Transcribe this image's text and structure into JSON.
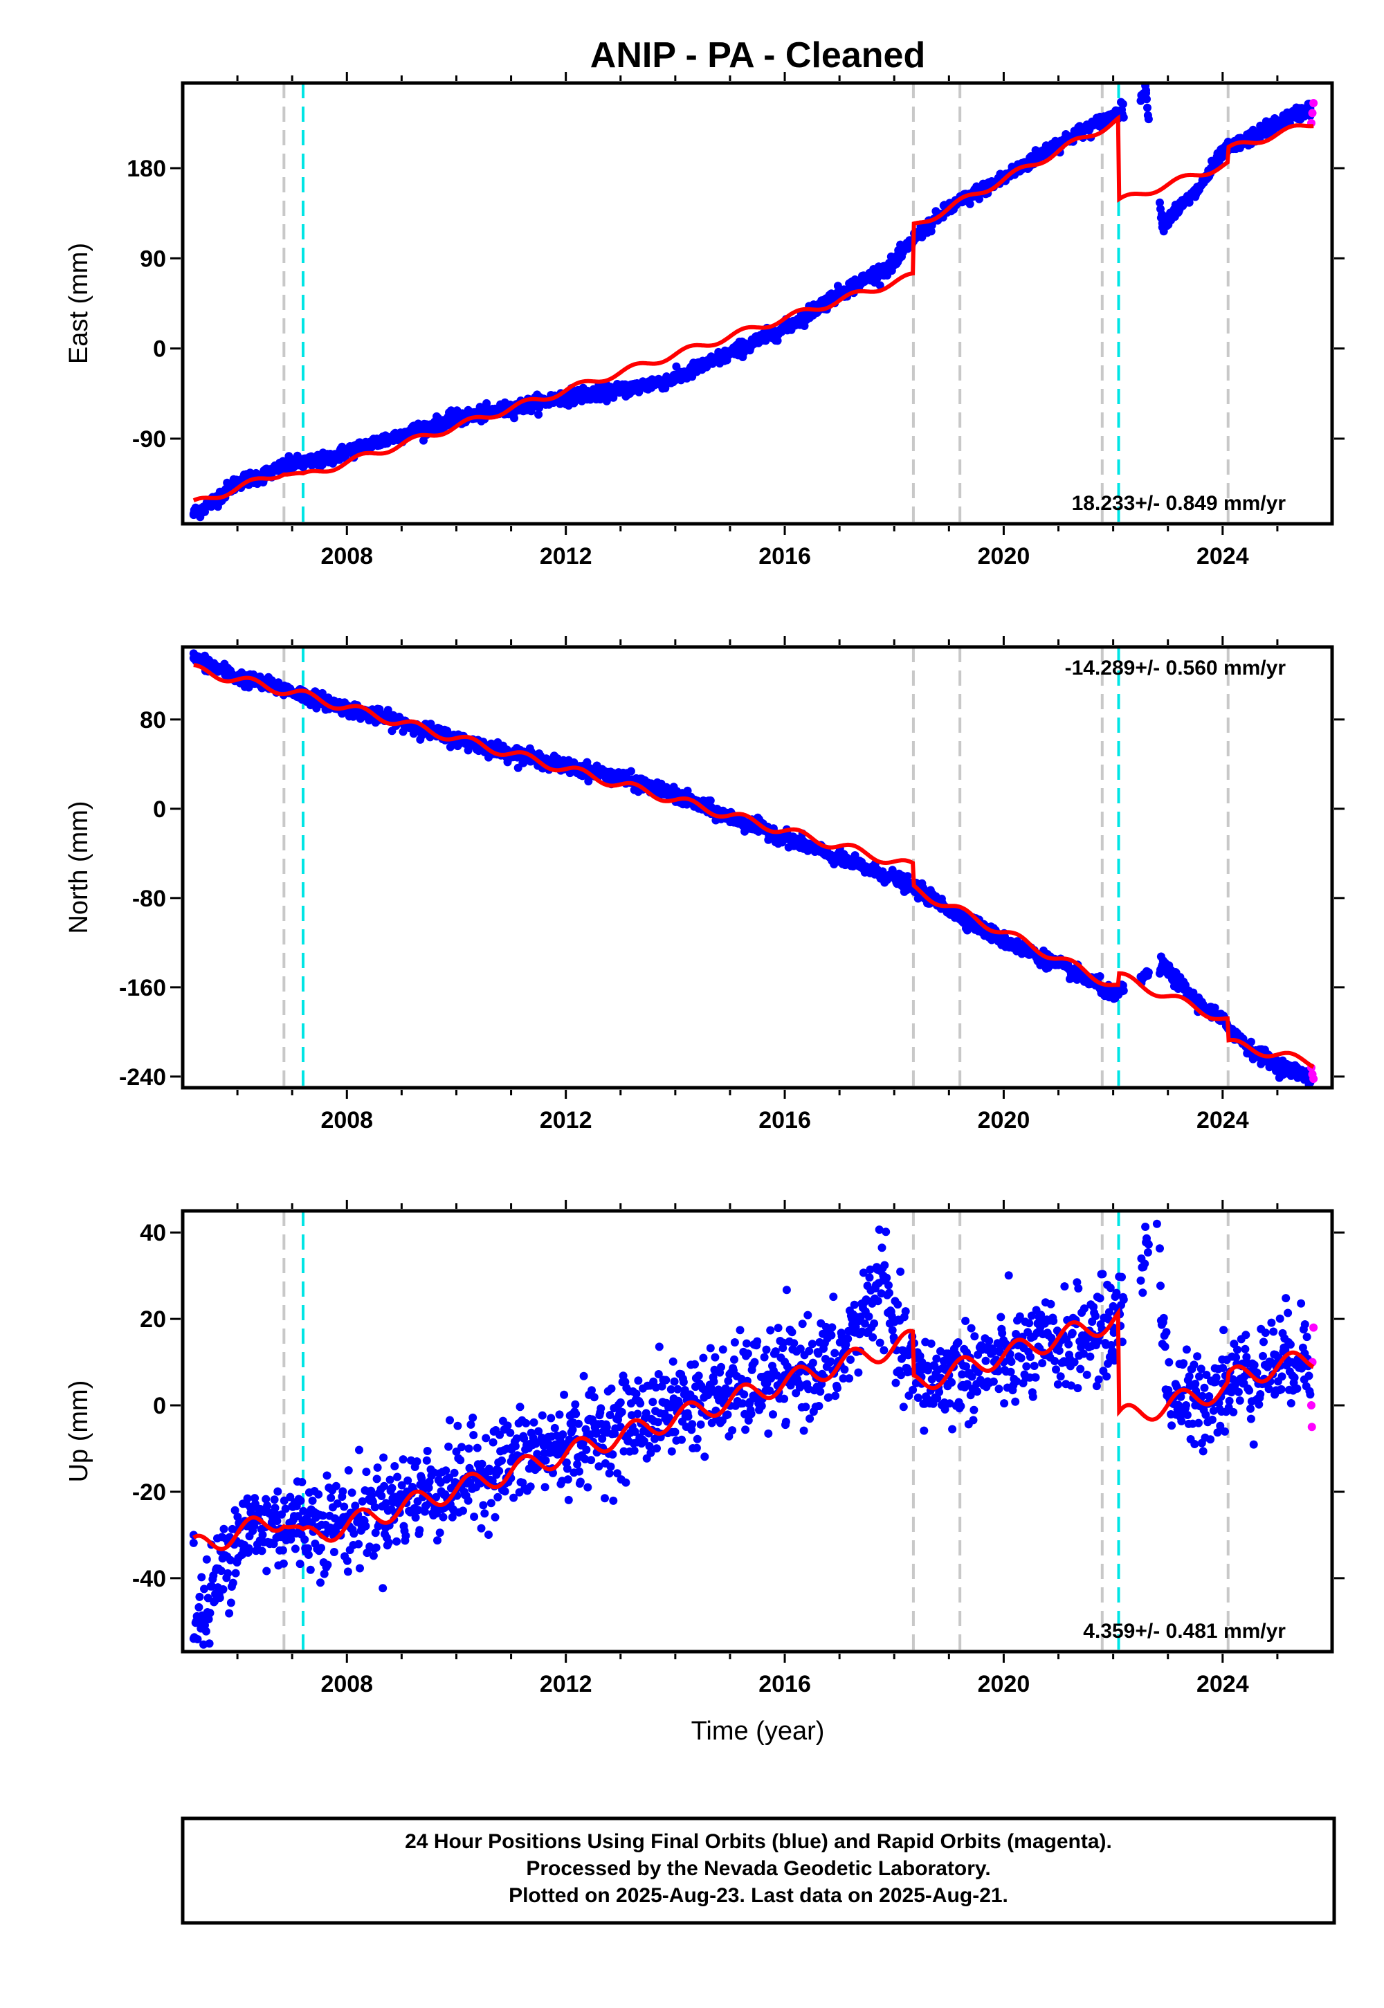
{
  "title": "ANIP  - PA - Cleaned",
  "xlabel": "Time (year)",
  "footer": {
    "line1": "24 Hour Positions Using Final Orbits (blue) and Rapid Orbits (magenta).",
    "line2": "Processed by the Nevada Geodetic Laboratory.",
    "line3": "Plotted on 2025-Aug-23. Last data on 2025-Aug-21."
  },
  "colors": {
    "final_orbits": "#0000ff",
    "rapid_orbits": "#ff00ff",
    "model": "#ff0000",
    "equipment_change": "#c8c8c8",
    "earthquake": "#00e5e5"
  },
  "chart_data": [
    {
      "type": "scatter",
      "panel": "east",
      "ylabel": "East (mm)",
      "rate_label": "18.233+/- 0.849 mm/yr",
      "xlim": [
        2005.0,
        2026.0
      ],
      "ylim": [
        -175,
        265
      ],
      "xticks": [
        2008,
        2012,
        2016,
        2020,
        2024
      ],
      "yticks": [
        -90,
        0,
        90,
        180
      ],
      "vlines_gray": [
        2006.85,
        2018.35,
        2019.2,
        2021.8,
        2024.1
      ],
      "vlines_cyan": [
        2007.2,
        2022.1
      ],
      "observations": [
        {
          "x": 2005.2,
          "y": -165
        },
        {
          "x": 2005.5,
          "y": -155
        },
        {
          "x": 2006.0,
          "y": -133
        },
        {
          "x": 2006.5,
          "y": -126
        },
        {
          "x": 2007.0,
          "y": -115
        },
        {
          "x": 2007.5,
          "y": -113
        },
        {
          "x": 2008.0,
          "y": -103
        },
        {
          "x": 2009.0,
          "y": -86
        },
        {
          "x": 2010.0,
          "y": -70
        },
        {
          "x": 2011.0,
          "y": -60
        },
        {
          "x": 2012.0,
          "y": -48
        },
        {
          "x": 2013.0,
          "y": -42
        },
        {
          "x": 2014.0,
          "y": -30
        },
        {
          "x": 2015.0,
          "y": -5
        },
        {
          "x": 2016.0,
          "y": 20
        },
        {
          "x": 2017.0,
          "y": 55
        },
        {
          "x": 2018.0,
          "y": 85
        },
        {
          "x": 2018.4,
          "y": 112
        },
        {
          "x": 2019.0,
          "y": 140
        },
        {
          "x": 2020.0,
          "y": 170
        },
        {
          "x": 2021.0,
          "y": 205
        },
        {
          "x": 2022.0,
          "y": 232
        },
        {
          "x": 2022.6,
          "y": 255
        },
        {
          "x": 2022.9,
          "y": 125
        },
        {
          "x": 2023.5,
          "y": 155
        },
        {
          "x": 2024.0,
          "y": 195
        },
        {
          "x": 2024.5,
          "y": 210
        },
        {
          "x": 2025.0,
          "y": 225
        },
        {
          "x": 2025.6,
          "y": 240
        }
      ],
      "rapid_observations": [
        {
          "x": 2025.62,
          "y": 225
        },
        {
          "x": 2025.64,
          "y": 235
        },
        {
          "x": 2025.66,
          "y": 245
        }
      ],
      "model": [
        {
          "x": 2005.2,
          "y": -155
        },
        {
          "x": 2006.85,
          "y": -123
        },
        {
          "x": 2007.2,
          "y": -128
        },
        {
          "x": 2018.34,
          "y": 72
        },
        {
          "x": 2018.36,
          "y": 122
        },
        {
          "x": 2022.09,
          "y": 228
        },
        {
          "x": 2022.11,
          "y": 147
        },
        {
          "x": 2024.09,
          "y": 184
        },
        {
          "x": 2024.11,
          "y": 199
        },
        {
          "x": 2025.66,
          "y": 225
        }
      ],
      "model_seasonal_amplitude": 3.5
    },
    {
      "type": "scatter",
      "panel": "north",
      "ylabel": "North (mm)",
      "rate_label": "-14.289+/- 0.560 mm/yr",
      "xlim": [
        2005.0,
        2026.0
      ],
      "ylim": [
        -250,
        145
      ],
      "xticks": [
        2008,
        2012,
        2016,
        2020,
        2024
      ],
      "yticks": [
        -240,
        -160,
        -80,
        0,
        80
      ],
      "vlines_gray": [
        2006.85,
        2018.35,
        2019.2,
        2021.8,
        2024.1
      ],
      "vlines_cyan": [
        2007.2,
        2022.1
      ],
      "observations": [
        {
          "x": 2005.2,
          "y": 135
        },
        {
          "x": 2006.0,
          "y": 118
        },
        {
          "x": 2007.0,
          "y": 105
        },
        {
          "x": 2008.0,
          "y": 90
        },
        {
          "x": 2009.0,
          "y": 77
        },
        {
          "x": 2010.0,
          "y": 62
        },
        {
          "x": 2011.0,
          "y": 50
        },
        {
          "x": 2012.0,
          "y": 38
        },
        {
          "x": 2013.0,
          "y": 28
        },
        {
          "x": 2014.0,
          "y": 12
        },
        {
          "x": 2015.0,
          "y": -8
        },
        {
          "x": 2016.0,
          "y": -25
        },
        {
          "x": 2017.0,
          "y": -45
        },
        {
          "x": 2018.0,
          "y": -62
        },
        {
          "x": 2018.5,
          "y": -75
        },
        {
          "x": 2019.0,
          "y": -90
        },
        {
          "x": 2020.0,
          "y": -118
        },
        {
          "x": 2021.0,
          "y": -140
        },
        {
          "x": 2021.8,
          "y": -160
        },
        {
          "x": 2022.0,
          "y": -168
        },
        {
          "x": 2022.9,
          "y": -140
        },
        {
          "x": 2023.5,
          "y": -172
        },
        {
          "x": 2024.0,
          "y": -190
        },
        {
          "x": 2024.5,
          "y": -215
        },
        {
          "x": 2025.0,
          "y": -230
        },
        {
          "x": 2025.6,
          "y": -240
        }
      ],
      "rapid_observations": [
        {
          "x": 2025.62,
          "y": -232
        },
        {
          "x": 2025.64,
          "y": -238
        },
        {
          "x": 2025.66,
          "y": -242
        }
      ],
      "model": [
        {
          "x": 2005.2,
          "y": 125
        },
        {
          "x": 2007.2,
          "y": 102
        },
        {
          "x": 2018.34,
          "y": -52
        },
        {
          "x": 2018.36,
          "y": -72
        },
        {
          "x": 2022.09,
          "y": -160
        },
        {
          "x": 2022.11,
          "y": -150
        },
        {
          "x": 2024.09,
          "y": -190
        },
        {
          "x": 2024.11,
          "y": -210
        },
        {
          "x": 2025.66,
          "y": -228
        }
      ],
      "model_seasonal_amplitude": 4
    },
    {
      "type": "scatter",
      "panel": "up",
      "ylabel": "Up (mm)",
      "rate_label": "4.359+/- 0.481 mm/yr",
      "xlim": [
        2005.0,
        2026.0
      ],
      "ylim": [
        -57,
        45
      ],
      "xticks": [
        2008,
        2012,
        2016,
        2020,
        2024
      ],
      "yticks": [
        -40,
        -20,
        0,
        20,
        40
      ],
      "vlines_gray": [
        2006.85,
        2018.35,
        2019.2,
        2021.8,
        2024.1
      ],
      "vlines_cyan": [
        2007.2,
        2022.1
      ],
      "observations": [
        {
          "x": 2005.2,
          "y": -30
        },
        {
          "x": 2006.0,
          "y": -29
        },
        {
          "x": 2007.0,
          "y": -27
        },
        {
          "x": 2008.0,
          "y": -27
        },
        {
          "x": 2009.0,
          "y": -22
        },
        {
          "x": 2010.0,
          "y": -18
        },
        {
          "x": 2011.0,
          "y": -13
        },
        {
          "x": 2012.0,
          "y": -9
        },
        {
          "x": 2013.0,
          "y": -5
        },
        {
          "x": 2014.0,
          "y": 0
        },
        {
          "x": 2015.0,
          "y": 3
        },
        {
          "x": 2016.0,
          "y": 7
        },
        {
          "x": 2017.0,
          "y": 10
        },
        {
          "x": 2018.0,
          "y": 15
        },
        {
          "x": 2018.5,
          "y": 5
        },
        {
          "x": 2019.0,
          "y": 7
        },
        {
          "x": 2020.0,
          "y": 10
        },
        {
          "x": 2021.0,
          "y": 14
        },
        {
          "x": 2022.0,
          "y": 18
        },
        {
          "x": 2022.8,
          "y": 42
        },
        {
          "x": 2023.0,
          "y": 3
        },
        {
          "x": 2023.5,
          "y": 0
        },
        {
          "x": 2024.0,
          "y": 5
        },
        {
          "x": 2025.0,
          "y": 10
        },
        {
          "x": 2025.5,
          "y": 12
        },
        {
          "x": 2005.2,
          "y": -54
        },
        {
          "x": 2017.8,
          "y": 30
        }
      ],
      "rapid_observations": [
        {
          "x": 2025.62,
          "y": 0
        },
        {
          "x": 2025.64,
          "y": 10
        },
        {
          "x": 2025.66,
          "y": 18
        },
        {
          "x": 2025.63,
          "y": -5
        }
      ],
      "model": [
        {
          "x": 2005.2,
          "y": -33
        },
        {
          "x": 2006.85,
          "y": -26
        },
        {
          "x": 2007.2,
          "y": -31
        },
        {
          "x": 2018.34,
          "y": 15
        },
        {
          "x": 2018.36,
          "y": 5
        },
        {
          "x": 2022.09,
          "y": 20
        },
        {
          "x": 2022.11,
          "y": -3
        },
        {
          "x": 2024.09,
          "y": 4
        },
        {
          "x": 2024.11,
          "y": 6
        },
        {
          "x": 2025.66,
          "y": 11
        }
      ],
      "model_seasonal_amplitude": 2.5
    }
  ]
}
